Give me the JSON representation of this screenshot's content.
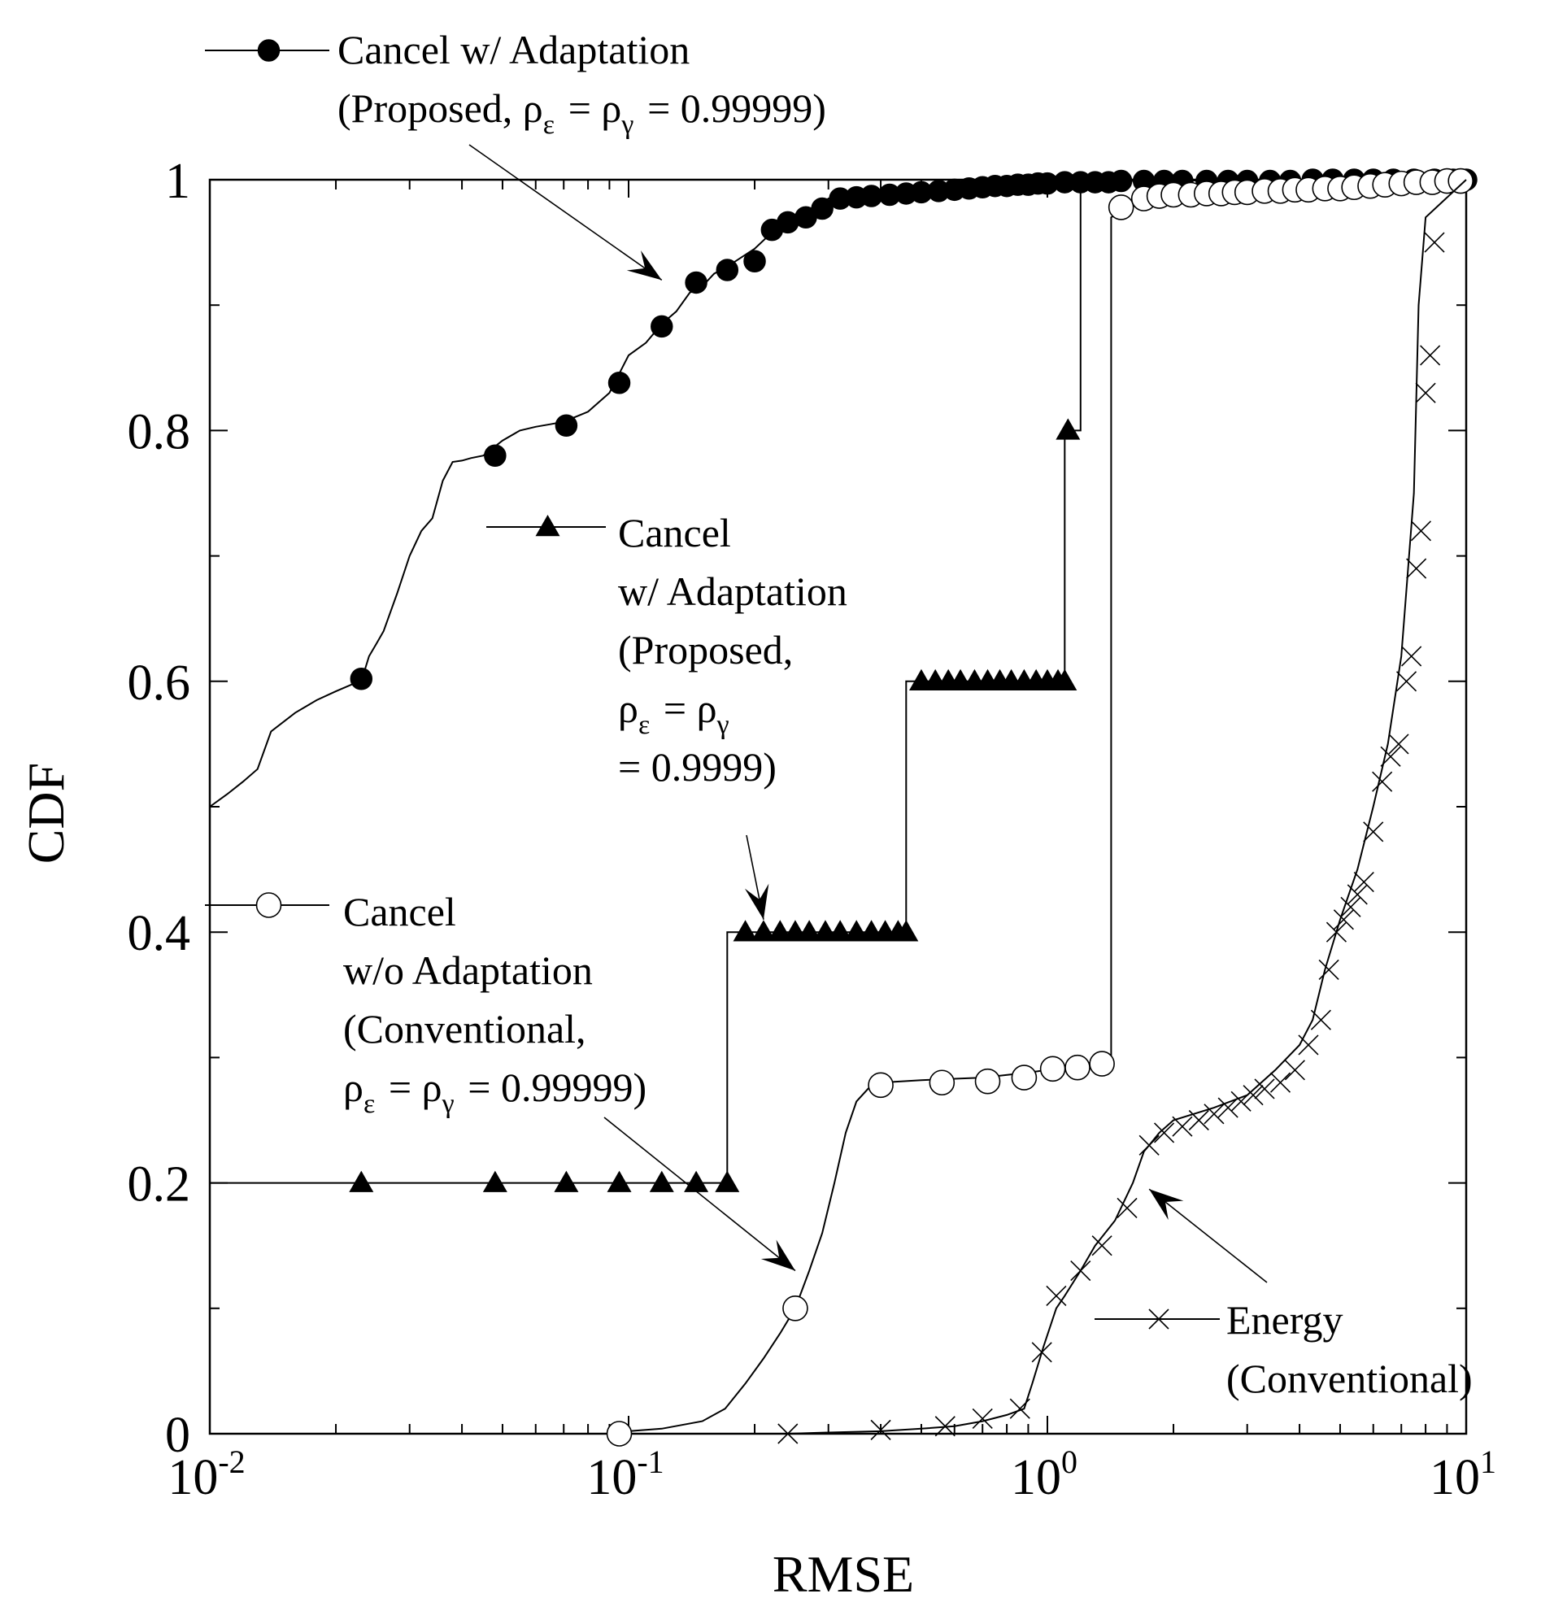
{
  "chart_data": {
    "type": "line",
    "xlabel": "RMSE",
    "ylabel": "CDF",
    "xscale": "log",
    "xlim": [
      0.01,
      10
    ],
    "ylim": [
      0,
      1
    ],
    "xticks": [
      {
        "value": 0.01,
        "base": "10",
        "exp": "-2"
      },
      {
        "value": 0.1,
        "base": "10",
        "exp": "-1"
      },
      {
        "value": 1,
        "base": "10",
        "exp": "0"
      },
      {
        "value": 10,
        "base": "10",
        "exp": "1"
      }
    ],
    "yticks": [
      {
        "value": 0,
        "label": "0"
      },
      {
        "value": 0.2,
        "label": "0.2"
      },
      {
        "value": 0.4,
        "label": "0.4"
      },
      {
        "value": 0.6,
        "label": "0.6"
      },
      {
        "value": 0.8,
        "label": "0.8"
      },
      {
        "value": 1,
        "label": "1"
      }
    ],
    "series": [
      {
        "name": "Cancel w/ Adaptation (Proposed, ρε = ργ = 0.99999)",
        "marker": "filled-circle",
        "legend_lines": [
          "Cancel  w/ Adaptation",
          "(Proposed, ρε = ργ = 0.99999)"
        ],
        "x": [
          0.01,
          0.011,
          0.012,
          0.013,
          0.014,
          0.016,
          0.018,
          0.02,
          0.022,
          0.023,
          0.024,
          0.025,
          0.026,
          0.028,
          0.03,
          0.032,
          0.034,
          0.036,
          0.038,
          0.04,
          0.042,
          0.045,
          0.05,
          0.055,
          0.06,
          0.065,
          0.07,
          0.08,
          0.09,
          0.1,
          0.11,
          0.12,
          0.13,
          0.14,
          0.15,
          0.16,
          0.17,
          0.18,
          0.2,
          0.22,
          0.25,
          0.28,
          0.3,
          0.35,
          0.4,
          0.5,
          0.6,
          0.8,
          1.0,
          1.5,
          2,
          3,
          5,
          10
        ],
        "y": [
          0.5,
          0.51,
          0.52,
          0.53,
          0.56,
          0.575,
          0.585,
          0.592,
          0.598,
          0.6,
          0.62,
          0.63,
          0.64,
          0.67,
          0.7,
          0.72,
          0.73,
          0.76,
          0.775,
          0.776,
          0.778,
          0.78,
          0.792,
          0.8,
          0.803,
          0.805,
          0.807,
          0.815,
          0.83,
          0.86,
          0.87,
          0.885,
          0.895,
          0.91,
          0.915,
          0.925,
          0.93,
          0.935,
          0.945,
          0.958,
          0.97,
          0.975,
          0.985,
          0.988,
          0.99,
          0.993,
          0.995,
          0.996,
          0.998,
          0.999,
          0.999,
          1.0,
          1.0,
          1.0
        ],
        "marker_x": [
          0.023,
          0.048,
          0.071,
          0.095,
          0.12,
          0.145,
          0.172,
          0.2,
          0.22,
          0.24,
          0.265,
          0.29,
          0.32,
          0.35,
          0.38,
          0.42,
          0.46,
          0.5,
          0.55,
          0.6,
          0.65,
          0.7,
          0.75,
          0.8,
          0.85,
          0.9,
          0.95,
          1.0,
          1.1,
          1.2,
          1.3,
          1.4,
          1.5,
          1.7,
          1.9,
          2.1,
          2.4,
          2.7,
          3.0,
          3.4,
          3.8,
          4.3,
          4.8,
          5.4,
          6.0,
          6.7,
          7.5,
          8.4,
          9.3,
          10.0
        ],
        "marker_y": [
          0.602,
          0.78,
          0.804,
          0.838,
          0.883,
          0.918,
          0.928,
          0.935,
          0.96,
          0.966,
          0.97,
          0.977,
          0.985,
          0.986,
          0.987,
          0.988,
          0.989,
          0.99,
          0.991,
          0.992,
          0.993,
          0.994,
          0.995,
          0.995,
          0.996,
          0.996,
          0.997,
          0.997,
          0.998,
          0.998,
          0.998,
          0.998,
          0.999,
          0.999,
          0.999,
          0.999,
          0.999,
          0.999,
          0.999,
          0.999,
          0.999,
          1.0,
          1.0,
          1.0,
          1.0,
          1.0,
          1.0,
          1.0,
          1.0,
          1.0
        ]
      },
      {
        "name": "Cancel w/ Adaptation (Proposed, ρε = ργ = 0.9999)",
        "marker": "filled-triangle",
        "legend_lines": [
          "Cancel",
          "w/ Adaptation",
          "(Proposed,",
          "ρε = ργ",
          "= 0.9999)"
        ],
        "x": [
          0.01,
          0.172,
          0.172,
          0.46,
          0.46,
          1.1,
          1.1,
          1.2,
          1.2,
          10
        ],
        "y": [
          0.2,
          0.2,
          0.4,
          0.4,
          0.6,
          0.6,
          0.8,
          0.8,
          1.0,
          1.0
        ],
        "marker_x": [
          0.023,
          0.048,
          0.071,
          0.095,
          0.12,
          0.145,
          0.172,
          0.19,
          0.21,
          0.23,
          0.25,
          0.27,
          0.295,
          0.32,
          0.35,
          0.38,
          0.41,
          0.44,
          0.46,
          0.5,
          0.54,
          0.58,
          0.62,
          0.67,
          0.72,
          0.77,
          0.82,
          0.88,
          0.94,
          1.0,
          1.06,
          1.1,
          1.12
        ],
        "marker_y": [
          0.2,
          0.2,
          0.2,
          0.2,
          0.2,
          0.2,
          0.2,
          0.4,
          0.4,
          0.4,
          0.4,
          0.4,
          0.4,
          0.4,
          0.4,
          0.4,
          0.4,
          0.4,
          0.4,
          0.6,
          0.6,
          0.6,
          0.6,
          0.6,
          0.6,
          0.6,
          0.6,
          0.6,
          0.6,
          0.6,
          0.6,
          0.6,
          0.8
        ]
      },
      {
        "name": "Cancel w/o Adaptation (Conventional, ρε = ργ = 0.99999)",
        "marker": "open-circle",
        "legend_lines": [
          "Cancel",
          "w/o Adaptation",
          "(Conventional,",
          "ρε = ργ = 0.99999)"
        ],
        "x": [
          0.01,
          0.06,
          0.09,
          0.095,
          0.1,
          0.12,
          0.15,
          0.17,
          0.19,
          0.21,
          0.23,
          0.25,
          0.27,
          0.29,
          0.31,
          0.33,
          0.35,
          0.38,
          0.4,
          0.5,
          0.7,
          0.9,
          1.1,
          1.35,
          1.42,
          1.42,
          1.55,
          1.7,
          2,
          3,
          5,
          8,
          10
        ],
        "y": [
          0,
          0,
          0,
          0.001,
          0.002,
          0.004,
          0.01,
          0.02,
          0.04,
          0.06,
          0.08,
          0.1,
          0.13,
          0.16,
          0.2,
          0.24,
          0.265,
          0.278,
          0.28,
          0.282,
          0.284,
          0.288,
          0.292,
          0.296,
          0.3,
          0.97,
          0.978,
          0.985,
          0.988,
          0.99,
          0.993,
          0.996,
          1.0
        ],
        "marker_x": [
          0.095,
          0.25,
          0.4,
          0.56,
          0.72,
          0.88,
          1.03,
          1.18,
          1.35,
          1.5,
          1.7,
          1.85,
          2.0,
          2.2,
          2.4,
          2.6,
          2.8,
          3.0,
          3.3,
          3.6,
          3.9,
          4.2,
          4.6,
          5.0,
          5.4,
          5.9,
          6.4,
          7.0,
          7.6,
          8.3,
          9.0,
          9.7
        ],
        "marker_y": [
          0.0,
          0.1,
          0.278,
          0.28,
          0.281,
          0.284,
          0.291,
          0.292,
          0.295,
          0.978,
          0.985,
          0.987,
          0.988,
          0.988,
          0.989,
          0.989,
          0.99,
          0.99,
          0.991,
          0.991,
          0.992,
          0.992,
          0.993,
          0.993,
          0.994,
          0.995,
          0.996,
          0.997,
          0.998,
          0.998,
          0.999,
          0.999
        ]
      },
      {
        "name": "Energy (Conventional)",
        "marker": "x-cross",
        "legend_lines": [
          "Energy",
          "(Conventional)"
        ],
        "x": [
          0.24,
          0.3,
          0.4,
          0.5,
          0.6,
          0.7,
          0.8,
          0.88,
          0.92,
          0.98,
          1.05,
          1.1,
          1.2,
          1.3,
          1.45,
          1.6,
          1.7,
          1.75,
          1.85,
          2,
          2.5,
          3,
          3.5,
          4,
          4.3,
          4.6,
          5,
          5.5,
          6,
          6.5,
          7,
          7.5,
          7.7,
          8,
          10
        ],
        "y": [
          0.0,
          0.001,
          0.002,
          0.004,
          0.006,
          0.01,
          0.015,
          0.02,
          0.04,
          0.07,
          0.1,
          0.11,
          0.13,
          0.15,
          0.17,
          0.2,
          0.225,
          0.23,
          0.24,
          0.25,
          0.26,
          0.27,
          0.29,
          0.31,
          0.33,
          0.37,
          0.41,
          0.45,
          0.5,
          0.55,
          0.62,
          0.75,
          0.9,
          0.97,
          1.0
        ],
        "marker_x": [
          0.24,
          0.4,
          0.57,
          0.7,
          0.86,
          0.97,
          1.05,
          1.2,
          1.35,
          1.55,
          1.75,
          1.9,
          2.1,
          2.3,
          2.5,
          2.7,
          2.9,
          3.1,
          3.3,
          3.6,
          3.9,
          4.2,
          4.5,
          4.7,
          4.9,
          5.1,
          5.3,
          5.5,
          5.7,
          6.0,
          6.3,
          6.6,
          6.9,
          7.2,
          7.4,
          7.6,
          7.8,
          8.0,
          8.2,
          8.4
        ],
        "marker_y": [
          0.0,
          0.003,
          0.006,
          0.012,
          0.02,
          0.065,
          0.11,
          0.13,
          0.15,
          0.18,
          0.23,
          0.24,
          0.245,
          0.25,
          0.255,
          0.26,
          0.265,
          0.27,
          0.275,
          0.28,
          0.29,
          0.31,
          0.33,
          0.37,
          0.4,
          0.41,
          0.42,
          0.43,
          0.44,
          0.48,
          0.52,
          0.54,
          0.55,
          0.6,
          0.62,
          0.69,
          0.72,
          0.83,
          0.86,
          0.95
        ]
      }
    ],
    "annotations": [
      {
        "label_series": 0,
        "target": [
          0.12,
          0.92
        ]
      },
      {
        "label_series": 1,
        "target": [
          0.21,
          0.41
        ]
      },
      {
        "label_series": 2,
        "target": [
          0.25,
          0.13
        ]
      },
      {
        "label_series": 3,
        "target": [
          1.75,
          0.195
        ]
      }
    ]
  }
}
